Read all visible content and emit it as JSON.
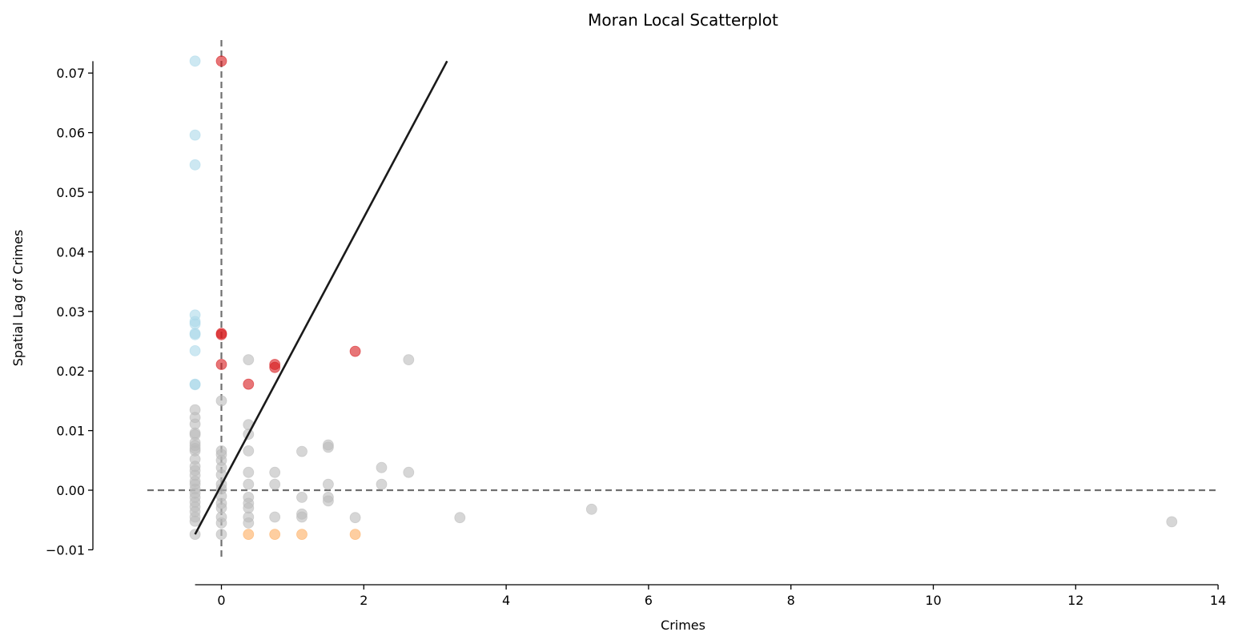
{
  "chart_data": {
    "type": "scatter",
    "title": "Moran Local Scatterplot",
    "xlabel": "Crimes",
    "ylabel": "Spatial Lag of Crimes",
    "xlim": [
      -0.37,
      14
    ],
    "ylim": [
      -0.01,
      0.072
    ],
    "x_ticks": [
      0,
      2,
      4,
      6,
      8,
      10,
      12,
      14
    ],
    "y_ticks": [
      -0.01,
      0.0,
      0.01,
      0.02,
      0.03,
      0.04,
      0.05,
      0.06,
      0.07
    ],
    "x_tick_labels": [
      "0",
      "2",
      "4",
      "6",
      "8",
      "10",
      "12",
      "14"
    ],
    "y_tick_labels": [
      "−0.01",
      "0.00",
      "0.01",
      "0.02",
      "0.03",
      "0.04",
      "0.05",
      "0.06",
      "0.07"
    ],
    "reference_lines": {
      "vertical_x": 0,
      "horizontal_y": 0,
      "style": "dashed"
    },
    "fit_line": {
      "x": [
        -0.37,
        3.17
      ],
      "y": [
        -0.0074,
        0.072
      ]
    },
    "colors": {
      "high_high": "#d7191c",
      "low_high": "#abd9e9",
      "low_low": "#2c7bb6",
      "high_low": "#fdae61",
      "not_significant": "#bababa",
      "reference_line": "#707070",
      "fit_line": "#1a1a1a"
    },
    "series": [
      {
        "key": "low_high",
        "points": [
          [
            -0.37,
            0.072
          ],
          [
            -0.37,
            0.0596
          ],
          [
            -0.37,
            0.0546
          ],
          [
            -0.37,
            0.0294
          ],
          [
            -0.37,
            0.0283
          ],
          [
            -0.37,
            0.0279
          ],
          [
            -0.37,
            0.0263
          ],
          [
            -0.37,
            0.0261
          ],
          [
            -0.37,
            0.0234
          ],
          [
            -0.37,
            0.0178
          ],
          [
            -0.37,
            0.0177
          ]
        ]
      },
      {
        "key": "high_high",
        "points": [
          [
            0.0,
            0.072
          ],
          [
            0.0,
            0.0263
          ],
          [
            0.0,
            0.0261
          ],
          [
            0.0,
            0.0211
          ],
          [
            0.38,
            0.0178
          ],
          [
            0.75,
            0.0211
          ],
          [
            0.75,
            0.0206
          ],
          [
            1.88,
            0.0233
          ]
        ]
      },
      {
        "key": "high_low",
        "points": [
          [
            0.38,
            -0.0074
          ],
          [
            0.75,
            -0.0074
          ],
          [
            1.13,
            -0.0074
          ],
          [
            1.88,
            -0.0074
          ]
        ]
      },
      {
        "key": "not_significant",
        "points": [
          [
            -0.37,
            0.0135
          ],
          [
            -0.37,
            0.0122
          ],
          [
            -0.37,
            0.0111
          ],
          [
            -0.37,
            0.0096
          ],
          [
            -0.37,
            0.0093
          ],
          [
            -0.37,
            0.008
          ],
          [
            -0.37,
            0.0075
          ],
          [
            -0.37,
            0.007
          ],
          [
            -0.37,
            0.0066
          ],
          [
            -0.37,
            0.0052
          ],
          [
            -0.37,
            0.004
          ],
          [
            -0.37,
            0.0033
          ],
          [
            -0.37,
            0.0025
          ],
          [
            -0.37,
            0.0015
          ],
          [
            -0.37,
            0.001
          ],
          [
            -0.37,
            0.0002
          ],
          [
            -0.37,
            -0.0005
          ],
          [
            -0.37,
            -0.0012
          ],
          [
            -0.37,
            -0.002
          ],
          [
            -0.37,
            -0.0028
          ],
          [
            -0.37,
            -0.0036
          ],
          [
            -0.37,
            -0.0045
          ],
          [
            -0.37,
            -0.0052
          ],
          [
            -0.37,
            -0.0074
          ],
          [
            0.0,
            0.015
          ],
          [
            0.0,
            0.0066
          ],
          [
            0.0,
            0.006
          ],
          [
            0.0,
            0.005
          ],
          [
            0.0,
            0.0038
          ],
          [
            0.0,
            0.0026
          ],
          [
            0.0,
            0.001
          ],
          [
            0.0,
            0.0002
          ],
          [
            0.0,
            -0.001
          ],
          [
            0.0,
            -0.0022
          ],
          [
            0.0,
            -0.003
          ],
          [
            0.0,
            -0.0045
          ],
          [
            0.0,
            -0.0055
          ],
          [
            0.0,
            -0.0074
          ],
          [
            0.38,
            0.0219
          ],
          [
            0.38,
            0.011
          ],
          [
            0.38,
            0.0094
          ],
          [
            0.38,
            0.0066
          ],
          [
            0.38,
            0.003
          ],
          [
            0.38,
            0.001
          ],
          [
            0.38,
            -0.0012
          ],
          [
            0.38,
            -0.0022
          ],
          [
            0.38,
            -0.003
          ],
          [
            0.38,
            -0.0045
          ],
          [
            0.38,
            -0.0055
          ],
          [
            0.75,
            0.003
          ],
          [
            0.75,
            0.001
          ],
          [
            0.75,
            -0.0045
          ],
          [
            1.13,
            0.0065
          ],
          [
            1.13,
            -0.0012
          ],
          [
            1.13,
            -0.004
          ],
          [
            1.13,
            -0.0045
          ],
          [
            1.5,
            0.0076
          ],
          [
            1.5,
            0.0072
          ],
          [
            1.5,
            0.001
          ],
          [
            1.5,
            -0.0012
          ],
          [
            1.5,
            -0.0018
          ],
          [
            1.88,
            -0.0046
          ],
          [
            2.25,
            0.0038
          ],
          [
            2.25,
            0.001
          ],
          [
            2.63,
            0.0219
          ],
          [
            2.63,
            0.003
          ],
          [
            3.35,
            -0.0046
          ],
          [
            5.2,
            -0.0032
          ],
          [
            13.35,
            -0.0053
          ]
        ]
      }
    ]
  }
}
